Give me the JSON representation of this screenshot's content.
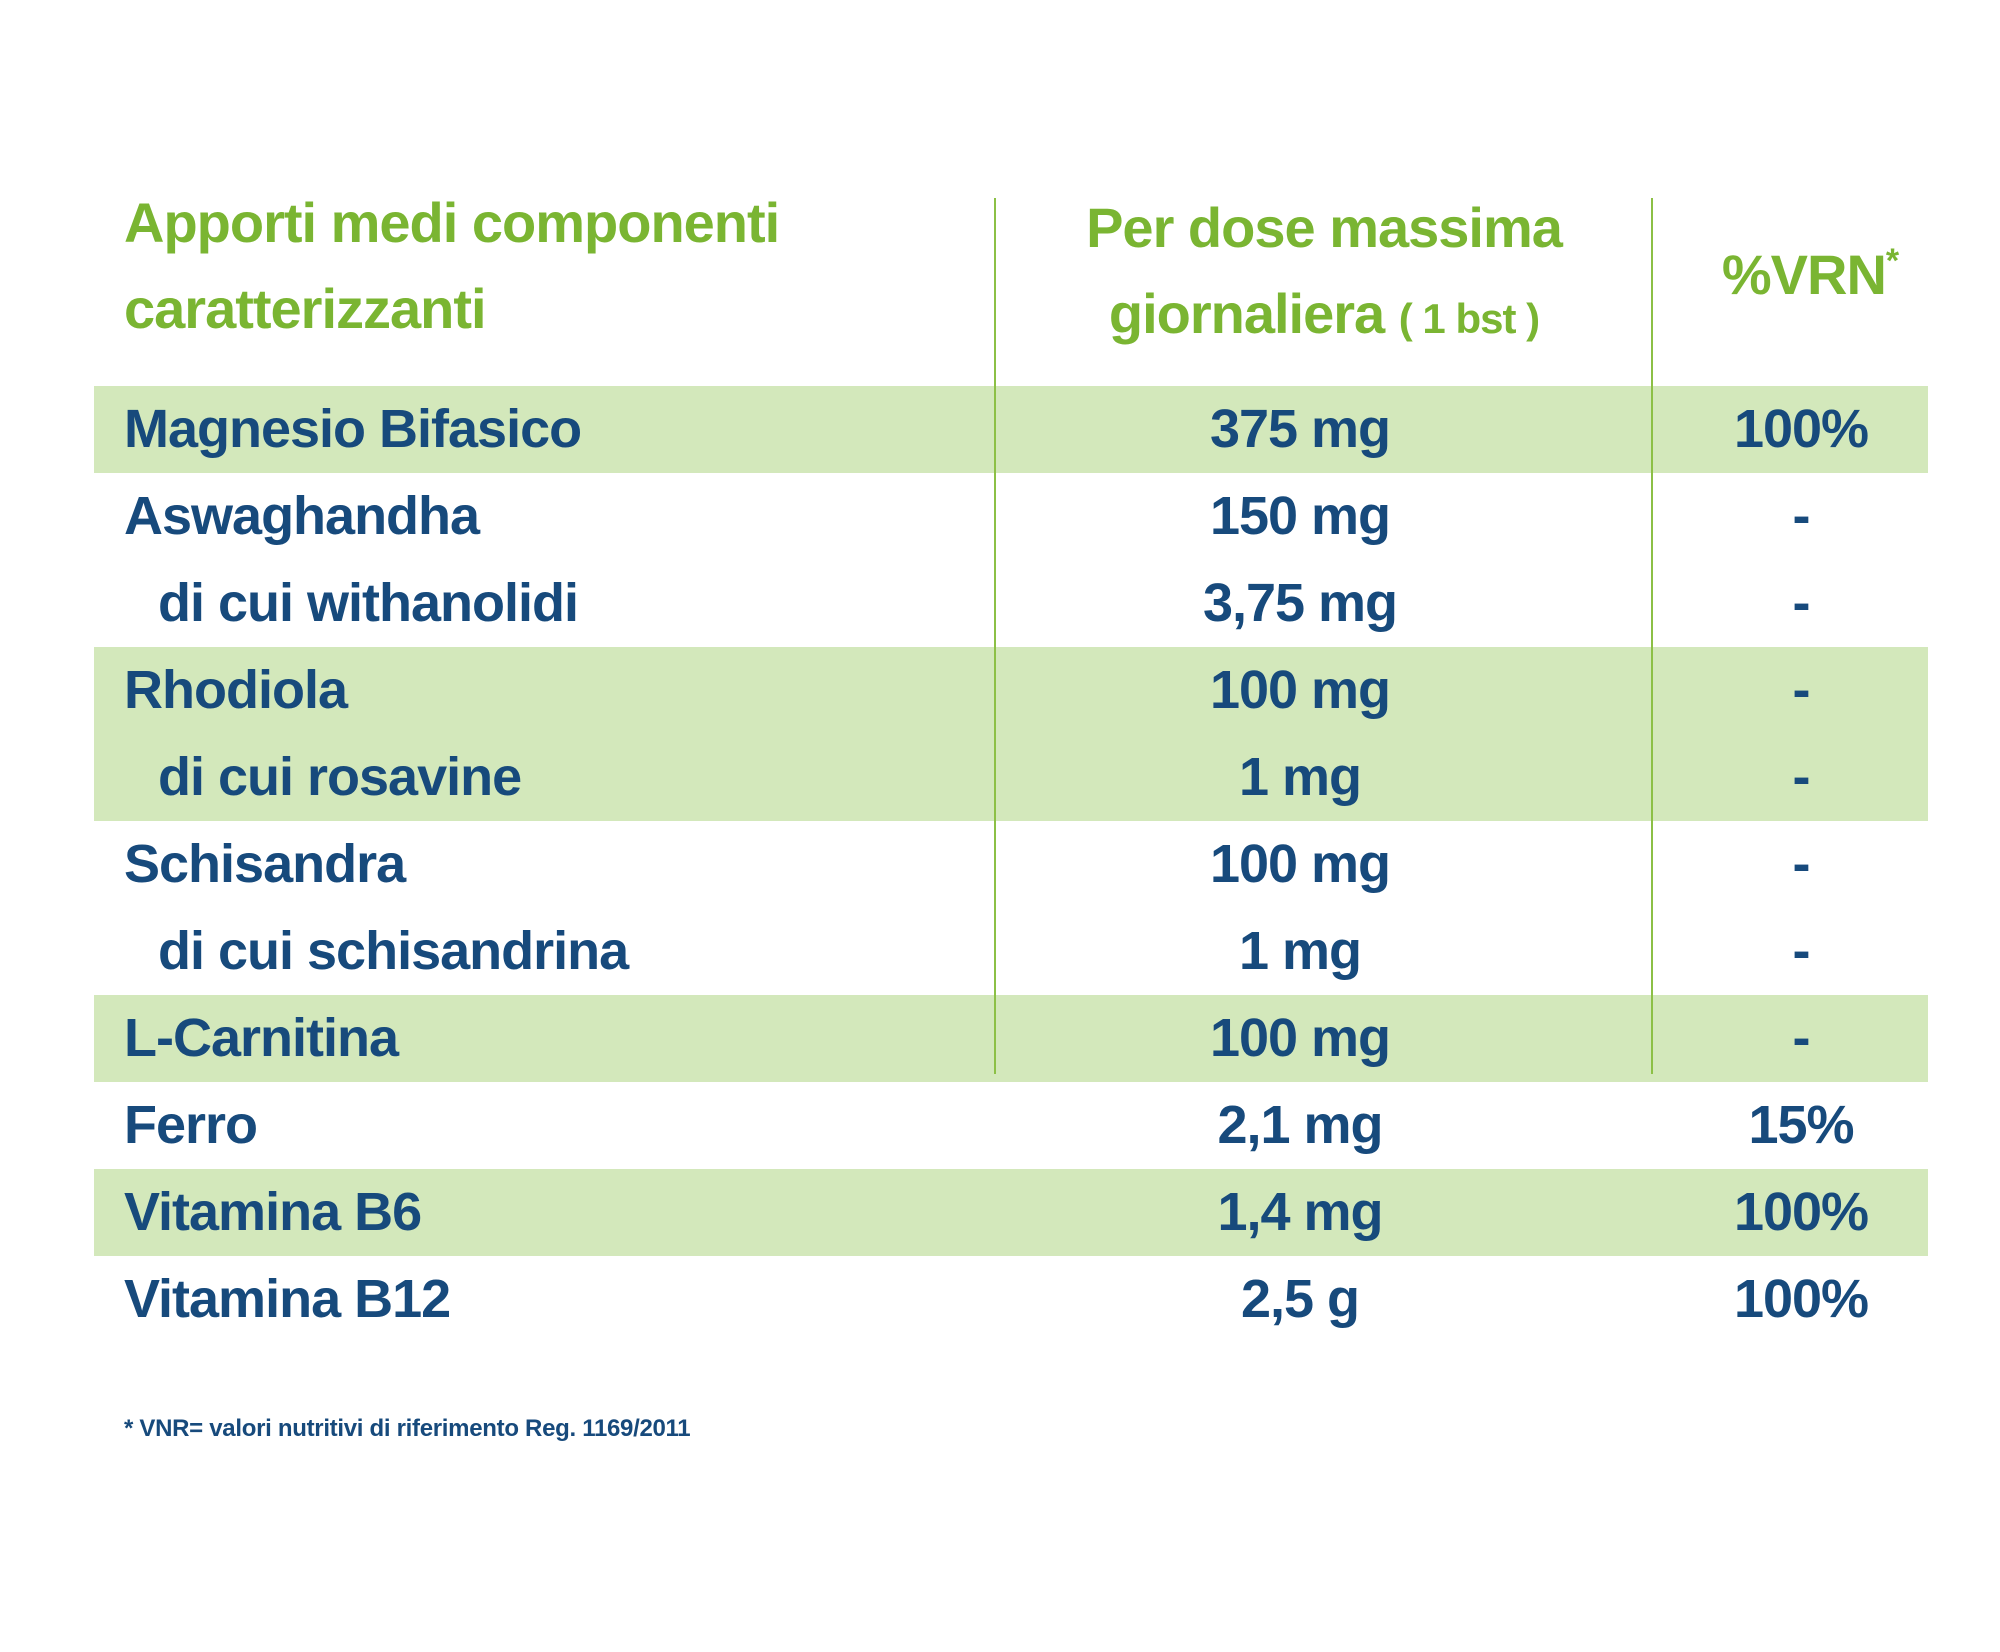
{
  "header": {
    "col1_line1": "Apporti medi componenti",
    "col1_line2": "caratterizzanti",
    "col2_line1": "Per dose massima",
    "col2_line2": "giornaliera",
    "col2_suffix": "( 1 bst )",
    "col3_label": "%VRN",
    "col3_sup": "*"
  },
  "rows": [
    {
      "name": "Magnesio Bifasico",
      "dose": "375 mg",
      "vrn": "100%",
      "shaded": true,
      "sub": false
    },
    {
      "name": "Aswaghandha",
      "dose": "150 mg",
      "vrn": "-",
      "shaded": false,
      "sub": false
    },
    {
      "name": "di cui withanolidi",
      "dose": "3,75 mg",
      "vrn": "-",
      "shaded": false,
      "sub": true
    },
    {
      "name": "Rhodiola",
      "dose": "100 mg",
      "vrn": "-",
      "shaded": true,
      "sub": false
    },
    {
      "name": "di cui rosavine",
      "dose": "1 mg",
      "vrn": "-",
      "shaded": true,
      "sub": true
    },
    {
      "name": "Schisandra",
      "dose": "100 mg",
      "vrn": "-",
      "shaded": false,
      "sub": false
    },
    {
      "name": "di cui schisandrina",
      "dose": "1 mg",
      "vrn": "-",
      "shaded": false,
      "sub": true
    },
    {
      "name": "L-Carnitina",
      "dose": "100 mg",
      "vrn": "-",
      "shaded": true,
      "sub": false
    },
    {
      "name": "Ferro",
      "dose": "2,1 mg",
      "vrn": "15%",
      "shaded": false,
      "sub": false
    },
    {
      "name": "Vitamina B6",
      "dose": "1,4 mg",
      "vrn": "100%",
      "shaded": true,
      "sub": false
    },
    {
      "name": "Vitamina B12",
      "dose": "2,5 g",
      "vrn": "100%",
      "shaded": false,
      "sub": false
    }
  ],
  "footnote": "* VNR= valori nutritivi di riferimento Reg. 1169/2011",
  "colors": {
    "header_green": "#7ab532",
    "row_shade": "#d3e8bb",
    "text_blue": "#174a7c",
    "divider": "#8cc046"
  }
}
